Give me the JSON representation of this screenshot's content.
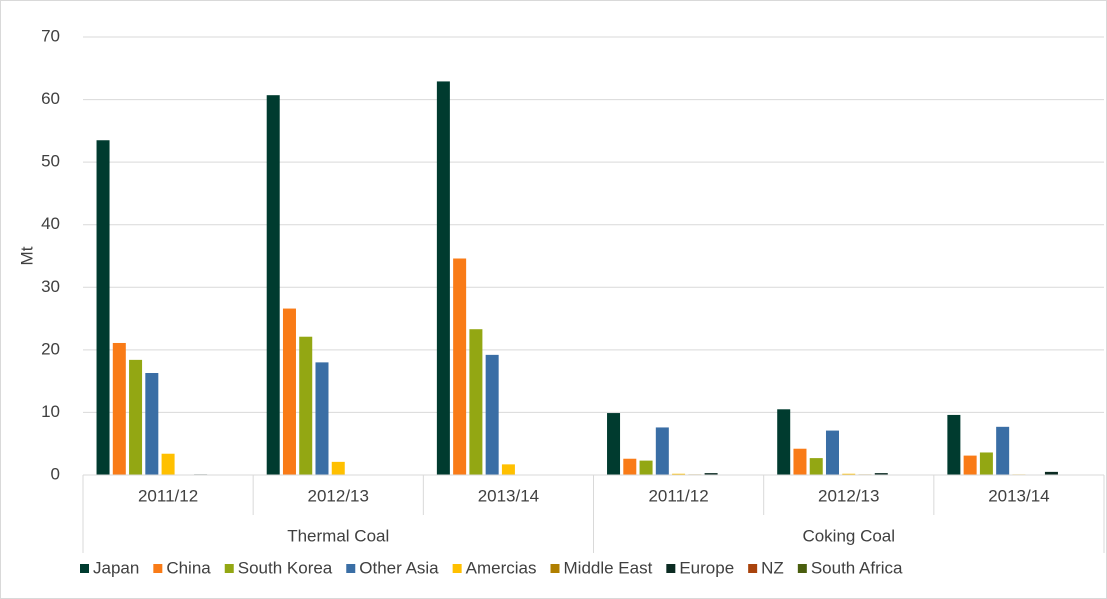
{
  "chart_data": {
    "type": "bar",
    "y_label": "Mt",
    "groups": [
      {
        "name": "Thermal Coal",
        "categories": [
          "2011/12",
          "2012/13",
          "2013/14"
        ]
      },
      {
        "name": "Coking Coal",
        "categories": [
          "2011/12",
          "2012/13",
          "2013/14"
        ]
      }
    ],
    "series": [
      {
        "name": "Japan",
        "color": "#003b2f",
        "values": [
          53.5,
          60.7,
          62.9,
          9.9,
          10.5,
          9.6
        ]
      },
      {
        "name": "China",
        "color": "#f97b17",
        "values": [
          21.1,
          26.6,
          34.6,
          2.6,
          4.2,
          3.1
        ]
      },
      {
        "name": "South Korea",
        "color": "#93a713",
        "values": [
          18.4,
          22.1,
          23.3,
          2.3,
          2.7,
          3.6
        ]
      },
      {
        "name": "Other Asia",
        "color": "#3a6ea5",
        "values": [
          16.3,
          18.0,
          19.2,
          7.6,
          7.1,
          7.7
        ]
      },
      {
        "name": "Amercias",
        "color": "#ffc000",
        "values": [
          3.4,
          2.1,
          1.7,
          0.2,
          0.2,
          0.1
        ]
      },
      {
        "name": "Middle East",
        "color": "#b07f00",
        "values": [
          0,
          0,
          0,
          0.1,
          0.1,
          0
        ]
      },
      {
        "name": "Europe",
        "color": "#0b2b22",
        "values": [
          0.1,
          0,
          0,
          0.3,
          0.3,
          0.5
        ]
      },
      {
        "name": "NZ",
        "color": "#a9430c",
        "values": [
          0,
          0,
          0,
          0,
          0,
          0
        ]
      },
      {
        "name": "South Africa",
        "color": "#4a5e0e",
        "values": [
          0,
          0,
          0,
          0,
          0,
          0
        ]
      }
    ],
    "ylim": [
      0,
      70
    ],
    "yticks": [
      0,
      10,
      20,
      30,
      40,
      50,
      60,
      70
    ],
    "grid": true,
    "legend": "bottom"
  }
}
